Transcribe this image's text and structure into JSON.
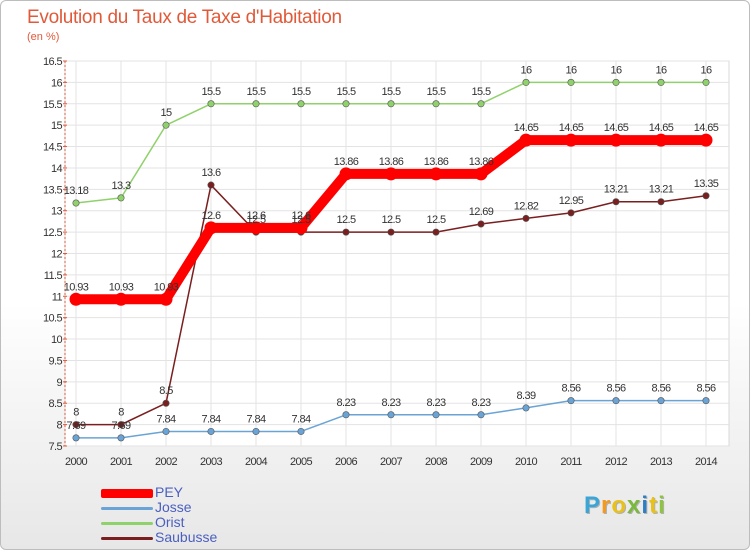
{
  "title": "Evolution du Taux de Taxe d'Habitation",
  "subtitle": "(en %)",
  "logo": {
    "letters": [
      "P",
      "r",
      "o",
      "x",
      "i",
      "t",
      "i"
    ],
    "colors": [
      "#3aa6d8",
      "#f29a1f",
      "#e8c21a",
      "#7ab93c",
      "#2d7fc1",
      "#e8c21a",
      "#8cc63f"
    ]
  },
  "chart_data": {
    "type": "line",
    "x": [
      2000,
      2001,
      2002,
      2003,
      2004,
      2005,
      2006,
      2007,
      2008,
      2009,
      2010,
      2011,
      2012,
      2013,
      2014
    ],
    "ylim": [
      7.5,
      16.5
    ],
    "yticks": [
      7.5,
      8,
      8.5,
      9,
      9.5,
      10,
      10.5,
      11,
      11.5,
      12,
      12.5,
      13,
      13.5,
      14,
      14.5,
      15,
      15.5,
      16,
      16.5
    ],
    "grid": true,
    "legend_position": "bottom-left",
    "series": [
      {
        "name": "PEY",
        "color": "#ff0000",
        "values": [
          10.93,
          10.93,
          10.93,
          12.6,
          12.6,
          12.6,
          13.86,
          13.86,
          13.86,
          13.86,
          14.65,
          14.65,
          14.65,
          14.65,
          14.65
        ],
        "labels": [
          "10.93",
          "10.93",
          "10.93",
          "12.6",
          "12.6",
          "12.6",
          "13.86",
          "13.86",
          "13.86",
          "13.86",
          "14.65",
          "14.65",
          "14.65",
          "14.65",
          "14.65"
        ]
      },
      {
        "name": "Josse",
        "color": "#6aa3d5",
        "values": [
          7.69,
          7.69,
          7.84,
          7.84,
          7.84,
          7.84,
          8.23,
          8.23,
          8.23,
          8.23,
          8.39,
          8.56,
          8.56,
          8.56,
          8.56
        ],
        "labels": [
          "7.69",
          "7.69",
          "7.84",
          "7.84",
          "7.84",
          "7.84",
          "8.23",
          "8.23",
          "8.23",
          "8.23",
          "8.39",
          "8.56",
          "8.56",
          "8.56",
          "8.56"
        ]
      },
      {
        "name": "Orist",
        "color": "#8fd16a",
        "values": [
          13.18,
          13.3,
          15,
          15.5,
          15.5,
          15.5,
          15.5,
          15.5,
          15.5,
          15.5,
          16,
          16,
          16,
          16,
          16
        ],
        "labels": [
          "13.18",
          "13.3",
          "15",
          "15.5",
          "15.5",
          "15.5",
          "15.5",
          "15.5",
          "15.5",
          "15.5",
          "16",
          "16",
          "16",
          "16",
          "16"
        ]
      },
      {
        "name": "Saubusse",
        "color": "#7a1f1f",
        "values": [
          8,
          8,
          8.5,
          13.6,
          12.5,
          12.5,
          12.5,
          12.5,
          12.5,
          12.69,
          12.82,
          12.95,
          13.21,
          13.21,
          13.35
        ],
        "labels": [
          "8",
          "8",
          "8.5",
          "13.6",
          "12.5",
          "12.5",
          "12.5",
          "12.5",
          "12.5",
          "12.69",
          "12.82",
          "12.95",
          "13.21",
          "13.21",
          "13.35"
        ]
      }
    ]
  }
}
